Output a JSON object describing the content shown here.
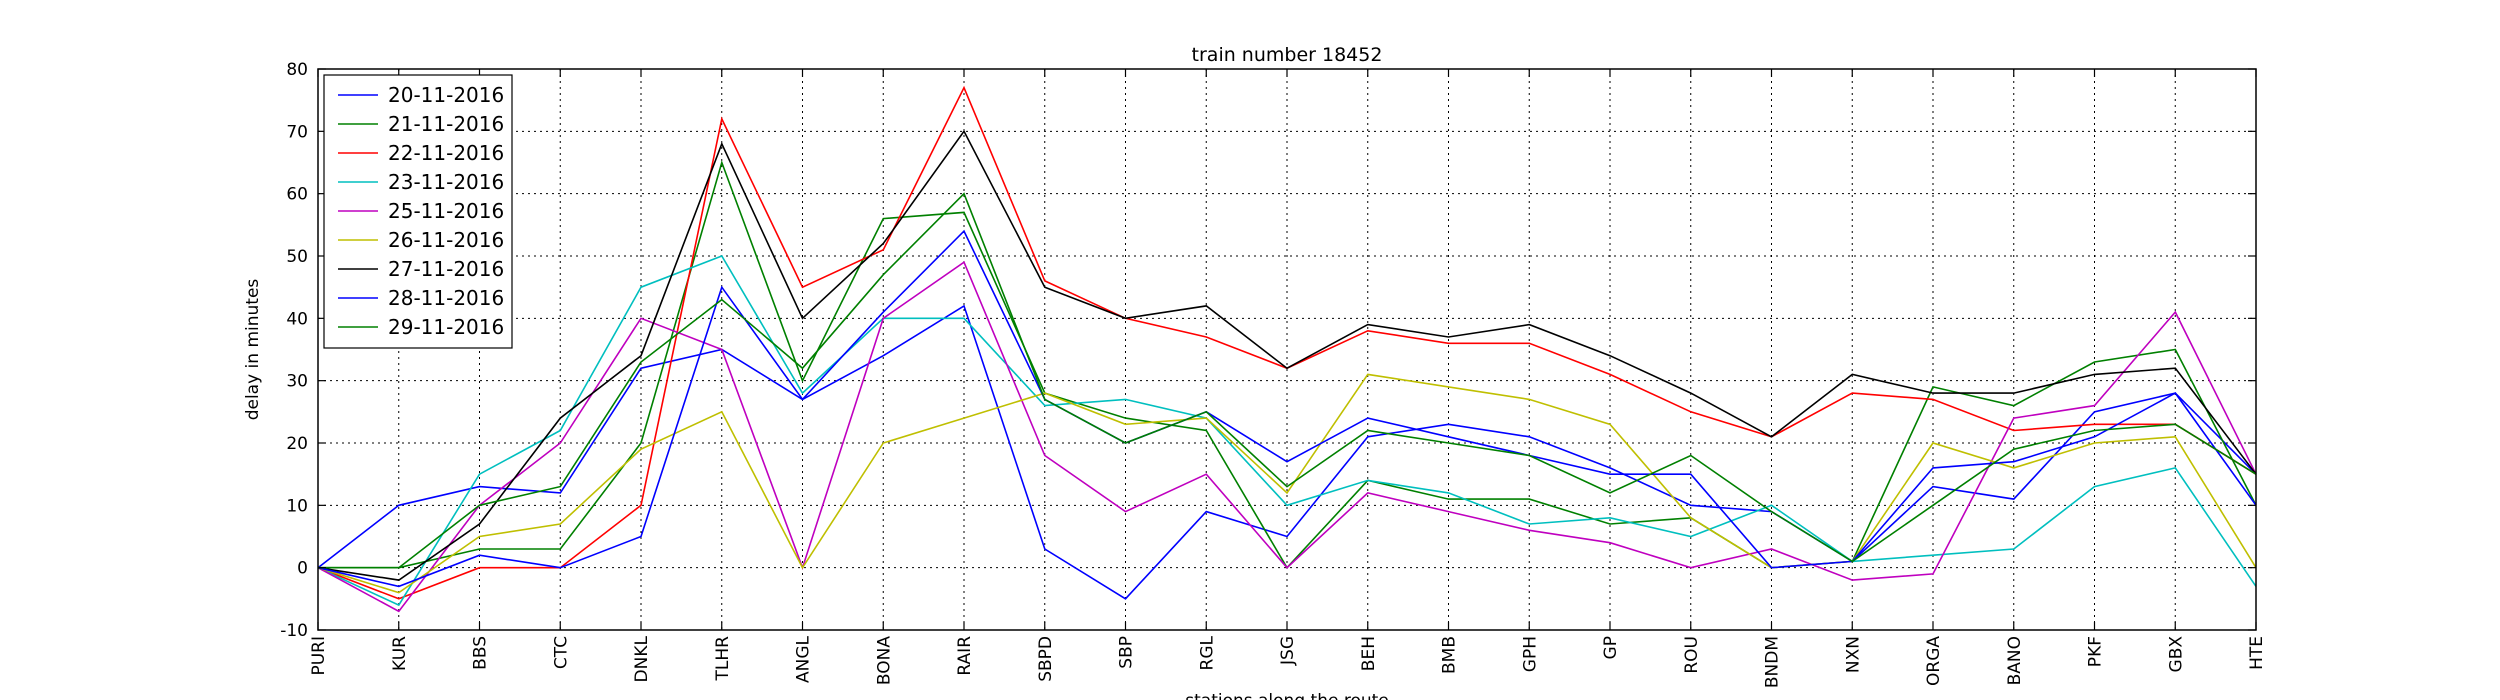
{
  "chart_data": {
    "type": "line",
    "title": "train number 18452",
    "xlabel": "stations along the route",
    "ylabel": "delay in minutes",
    "ylim": [
      -10,
      80
    ],
    "yticks": [
      -10,
      0,
      10,
      20,
      30,
      40,
      50,
      60,
      70,
      80
    ],
    "grid": true,
    "legend_position": "upper-left",
    "categories": [
      "PURI",
      "KUR",
      "BBS",
      "CTC",
      "DNKL",
      "TLHR",
      "ANGL",
      "BONA",
      "RAIR",
      "SBPD",
      "SBP",
      "RGL",
      "JSG",
      "BEH",
      "BMB",
      "GPH",
      "GP",
      "ROU",
      "BNDM",
      "NXN",
      "ORGA",
      "BANO",
      "PKF",
      "GBX",
      "HTE"
    ],
    "series": [
      {
        "name": "20-11-2016",
        "color": "#0000ff",
        "values": [
          0,
          10,
          13,
          12,
          32,
          35,
          27,
          34,
          42,
          3,
          -5,
          9,
          5,
          21,
          23,
          21,
          16,
          10,
          9,
          1,
          13,
          11,
          25,
          28,
          15
        ]
      },
      {
        "name": "21-11-2016",
        "color": "#008000",
        "values": [
          0,
          0,
          3,
          3,
          20,
          65,
          30,
          56,
          57,
          28,
          24,
          22,
          0,
          14,
          11,
          11,
          7,
          8,
          0,
          1,
          29,
          26,
          33,
          35,
          10
        ]
      },
      {
        "name": "22-11-2016",
        "color": "#ff0000",
        "values": [
          0,
          -5,
          0,
          0,
          10,
          72,
          45,
          51,
          77,
          46,
          40,
          37,
          32,
          38,
          36,
          36,
          31,
          25,
          21,
          28,
          27,
          22,
          23,
          23,
          15
        ]
      },
      {
        "name": "23-11-2016",
        "color": "#00bfbf",
        "values": [
          0,
          -6,
          15,
          22,
          45,
          50,
          28,
          40,
          40,
          26,
          27,
          24,
          10,
          14,
          12,
          7,
          8,
          5,
          10,
          1,
          2,
          3,
          13,
          16,
          -3
        ]
      },
      {
        "name": "25-11-2016",
        "color": "#bf00bf",
        "values": [
          0,
          -7,
          10,
          20,
          40,
          35,
          0,
          40,
          49,
          18,
          9,
          15,
          0,
          12,
          9,
          6,
          4,
          0,
          3,
          -2,
          -1,
          24,
          26,
          41,
          15
        ]
      },
      {
        "name": "26-11-2016",
        "color": "#bfbf00",
        "values": [
          0,
          -4,
          5,
          7,
          19,
          25,
          0,
          20,
          24,
          28,
          23,
          24,
          12,
          31,
          29,
          27,
          23,
          8,
          0,
          1,
          20,
          16,
          20,
          21,
          0
        ]
      },
      {
        "name": "27-11-2016",
        "color": "#000000",
        "values": [
          0,
          -2,
          7,
          24,
          34,
          68,
          40,
          52,
          70,
          45,
          40,
          42,
          32,
          39,
          37,
          39,
          34,
          28,
          21,
          31,
          28,
          28,
          31,
          32,
          15
        ]
      },
      {
        "name": "28-11-2016",
        "color": "#0000ff",
        "values": [
          0,
          -3,
          2,
          0,
          5,
          45,
          27,
          41,
          54,
          27,
          20,
          25,
          17,
          24,
          21,
          18,
          15,
          15,
          0,
          1,
          16,
          17,
          21,
          28,
          10
        ]
      },
      {
        "name": "29-11-2016",
        "color": "#008000",
        "values": [
          0,
          0,
          10,
          13,
          33,
          43,
          32,
          47,
          60,
          27,
          20,
          25,
          13,
          22,
          20,
          18,
          12,
          18,
          9,
          1,
          10,
          19,
          22,
          23,
          15
        ]
      }
    ]
  }
}
